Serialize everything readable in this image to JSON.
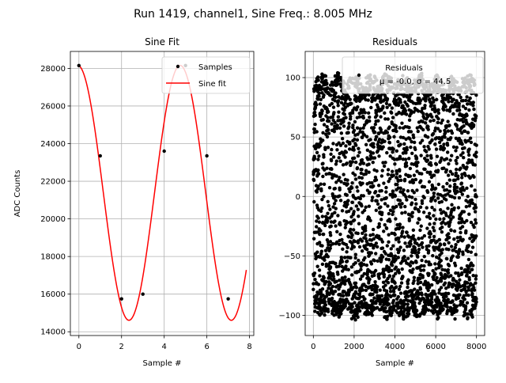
{
  "figure": {
    "suptitle": "Run 1419, channel1, Sine Freq.: 8.005 MHz"
  },
  "chart_data": [
    {
      "type": "line",
      "title": "Sine Fit",
      "xlabel": "Sample #",
      "ylabel": "ADC Counts",
      "xlim": [
        -0.4,
        8.2
      ],
      "ylim": [
        13800,
        28900
      ],
      "xticks": [
        0,
        2,
        4,
        6,
        8
      ],
      "yticks": [
        14000,
        16000,
        18000,
        20000,
        22000,
        24000,
        26000,
        28000
      ],
      "grid": true,
      "legend": {
        "placement": "top-right",
        "entries": [
          "Samples",
          "Sine fit"
        ]
      },
      "series": [
        {
          "name": "Samples",
          "kind": "scatter",
          "color": "#000000",
          "x": [
            0,
            1,
            2,
            3,
            4,
            5,
            6,
            7
          ],
          "y": [
            28150,
            23350,
            15750,
            16000,
            23600,
            28150,
            23350,
            15750
          ]
        },
        {
          "name": "Sine fit",
          "kind": "line",
          "color": "#ff0000",
          "model": {
            "offset": 21385,
            "amplitude": 6775,
            "period_samples": 4.8,
            "phase_rad": 0.07,
            "x_range": [
              0,
              7.85
            ]
          }
        }
      ]
    },
    {
      "type": "scatter",
      "title": "Residuals",
      "xlabel": "Sample #",
      "ylabel": "",
      "xlim": [
        -400,
        8400
      ],
      "ylim": [
        -117,
        122
      ],
      "xticks": [
        0,
        2000,
        4000,
        6000,
        8000
      ],
      "yticks": [
        -100,
        -50,
        0,
        50,
        100
      ],
      "grid": true,
      "legend": {
        "placement": "top-right",
        "entries": [
          "Residuals",
          "μ = -0.0, σ = 44.5"
        ]
      },
      "series": [
        {
          "name": "Residuals",
          "color": "#000000",
          "mean": -0.0,
          "std": 44.5,
          "x_range": [
            0,
            8000
          ],
          "n_points": 8000,
          "envelope": {
            "amplitude": 100,
            "period_samples": 1600
          }
        }
      ]
    }
  ]
}
